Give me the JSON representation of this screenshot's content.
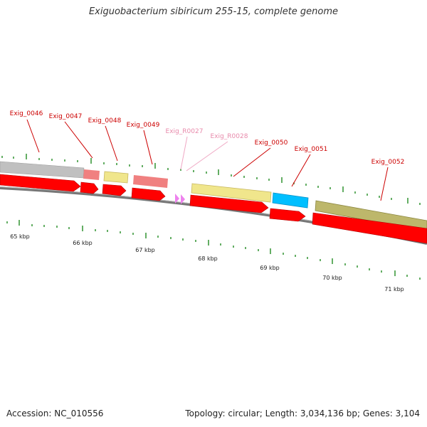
{
  "title": "Exiguobacterium sibiricum 255-15, complete genome",
  "accession": "Accession: NC_010556",
  "summary": "Topology: circular; Length: 3,034,136 bp; Genes: 3,104",
  "colors": {
    "cds": "#ff0000",
    "gene_gray": "#c0c0c0",
    "gene_pink": "#f08080",
    "gene_yellow": "#f0e68c",
    "gene_olive": "#bdb76b",
    "gene_blue": "#00bfff",
    "rna": "#ee82ee",
    "tick": "#228b22",
    "gene_label": "#cc0000",
    "rna_label": "#e88aab"
  },
  "scale_labels": [
    "65 kbp",
    "66 kbp",
    "67 kbp",
    "68 kbp",
    "69 kbp",
    "70 kbp",
    "71 kbp"
  ],
  "gene_labels": [
    {
      "id": "Exig_0046",
      "kind": "gene"
    },
    {
      "id": "Exig_0047",
      "kind": "gene"
    },
    {
      "id": "Exig_0048",
      "kind": "gene"
    },
    {
      "id": "Exig_0049",
      "kind": "gene"
    },
    {
      "id": "Exig_R0027",
      "kind": "rna"
    },
    {
      "id": "Exig_R0028",
      "kind": "rna"
    },
    {
      "id": "Exig_0050",
      "kind": "gene"
    },
    {
      "id": "Exig_0051",
      "kind": "gene"
    },
    {
      "id": "Exig_0052",
      "kind": "gene"
    }
  ]
}
